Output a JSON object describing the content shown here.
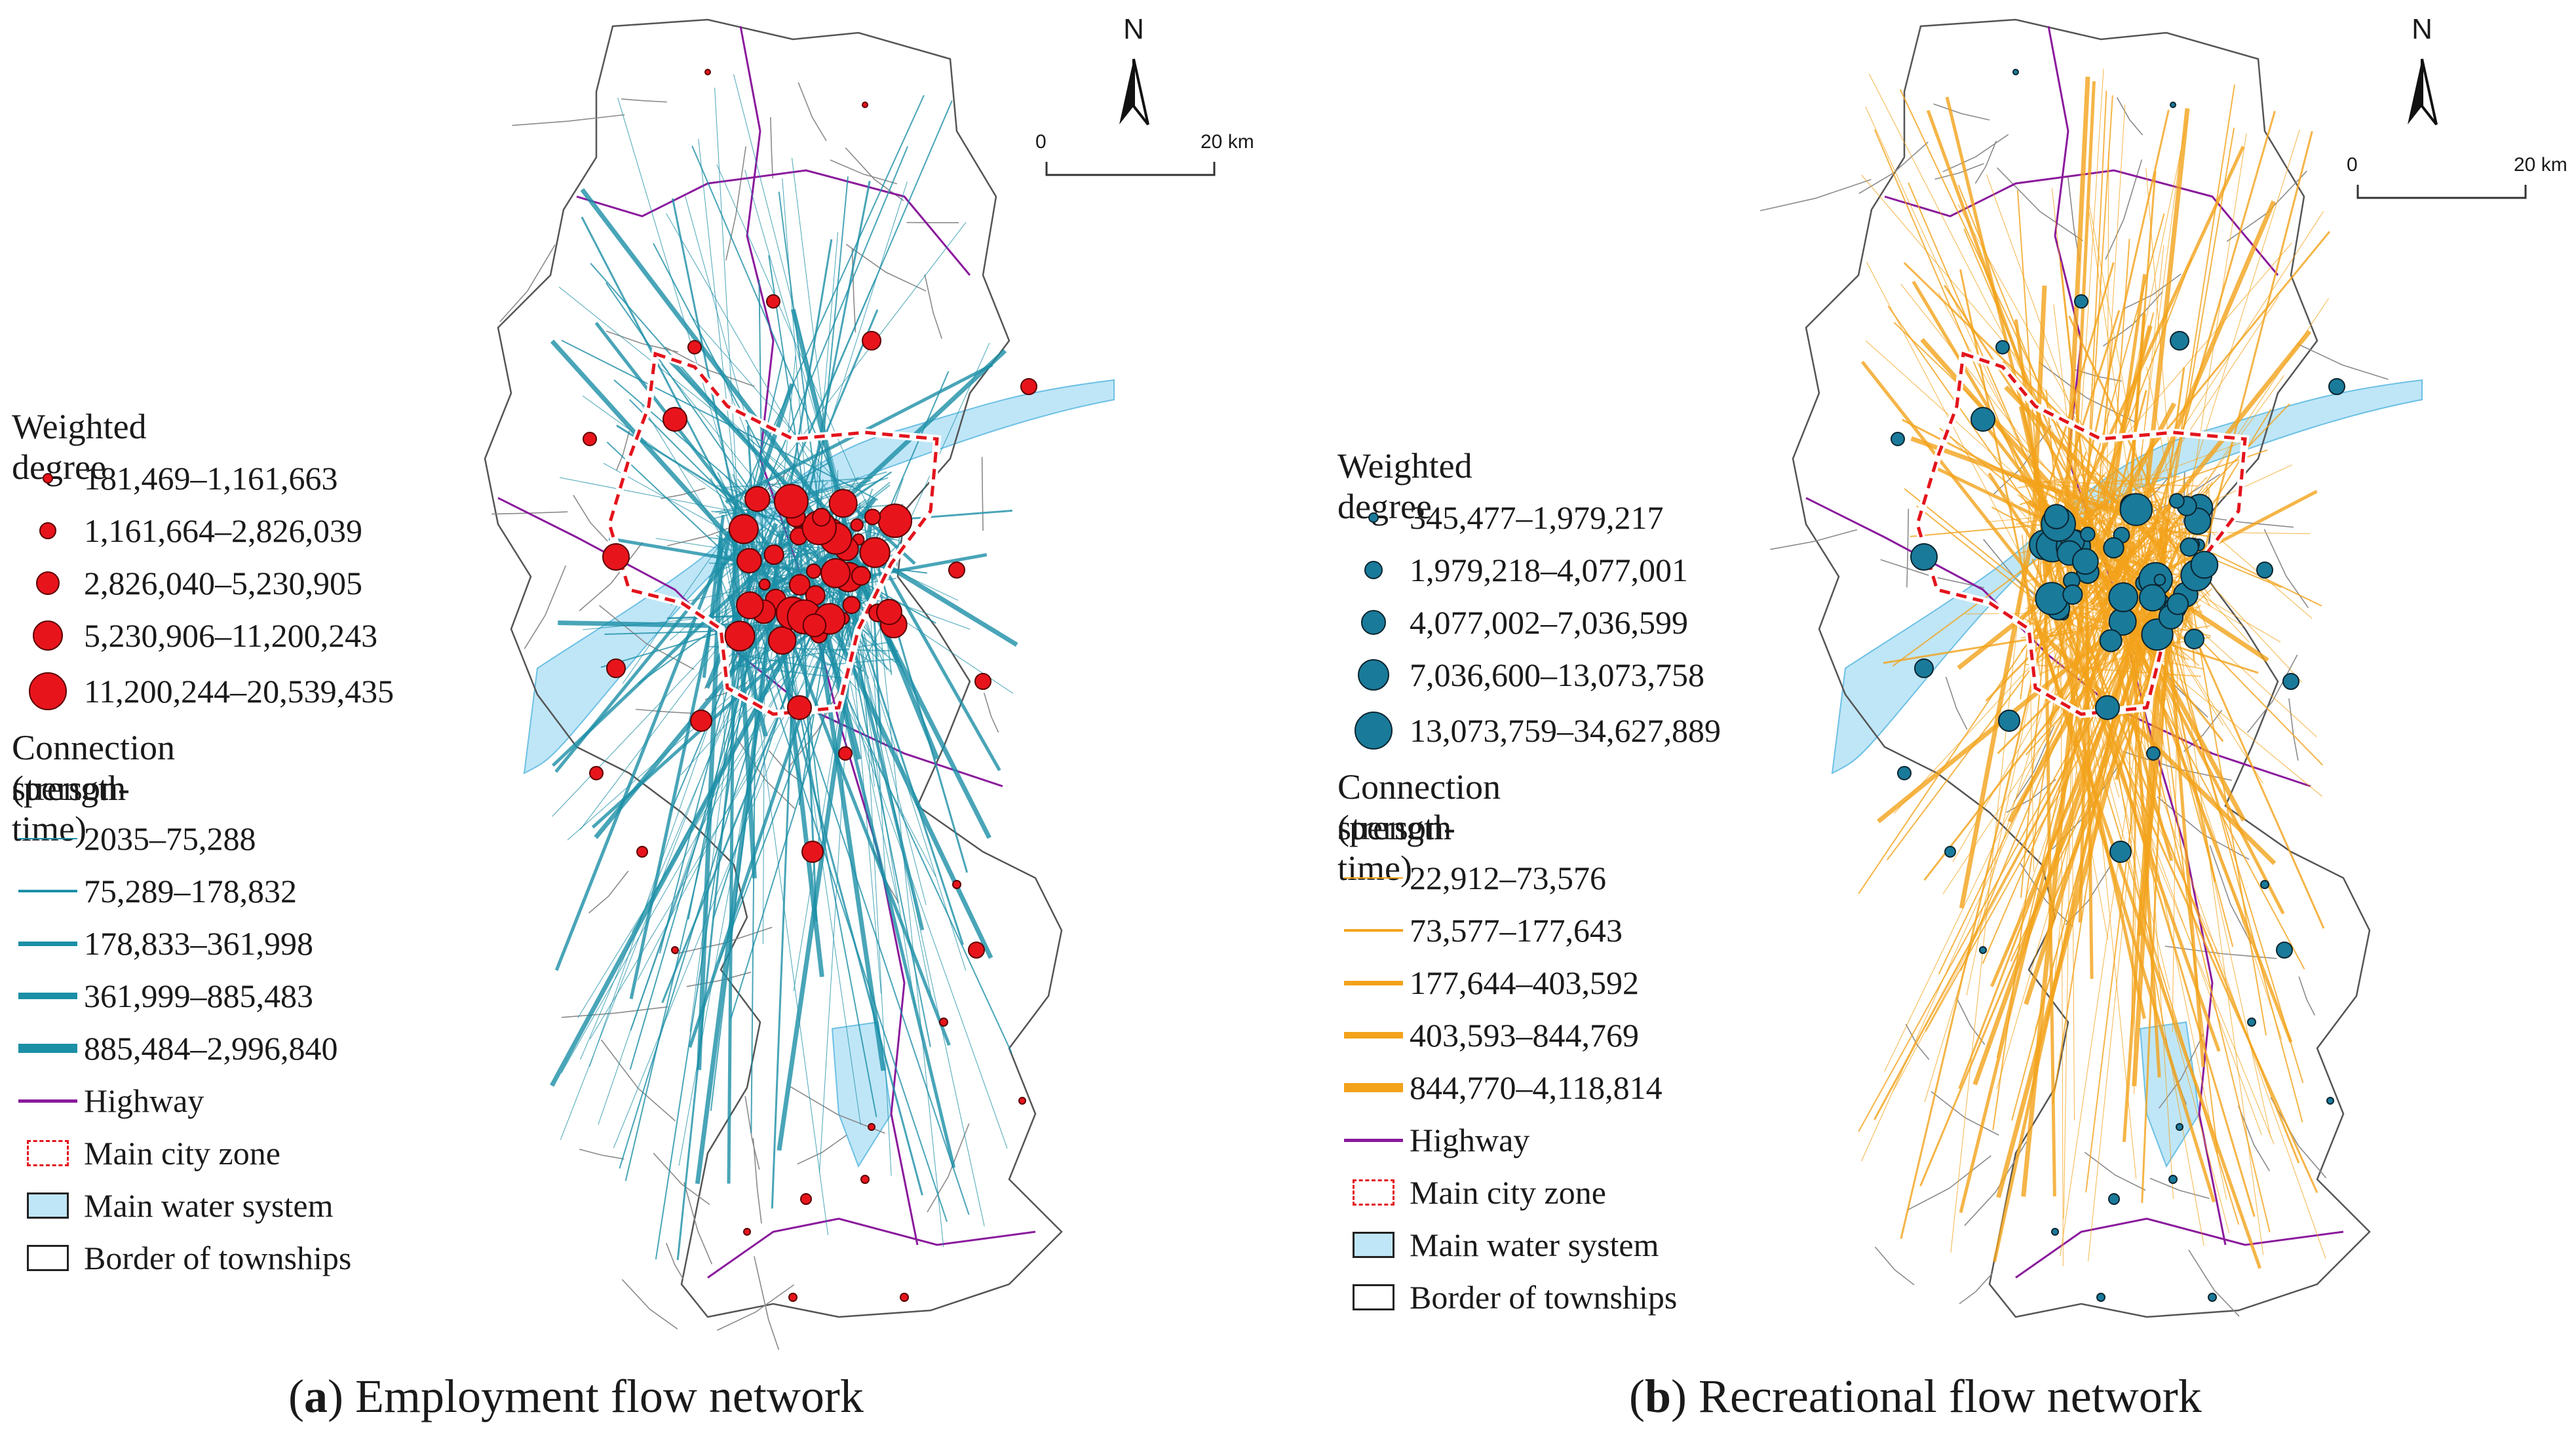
{
  "colors": {
    "panel_a_node": "#e8141c",
    "panel_a_line": "#1b8fa6",
    "panel_b_node": "#1a7a9a",
    "panel_b_line": "#f3a21a",
    "highway": "#8a1a9c",
    "main_city_zone": "#e3141c",
    "water": "#bfe6f7",
    "township_border": "#555555"
  },
  "panel_a": {
    "caption_letter": "a",
    "caption_text": "Employment flow network",
    "north_label": "N",
    "scale": {
      "start": "0",
      "end": "20 km"
    },
    "legend": {
      "weighted_degree_title": "Weighted degree",
      "weighted_degree_classes": [
        "181,469–1,161,663",
        "1,161,664–2,826,039",
        "2,826,040–5,230,905",
        "5,230,906–11,200,243",
        "11,200,244–20,539,435"
      ],
      "connection_title_1": "Connection strength",
      "connection_title_2": "(person-time)",
      "connection_classes": [
        "2035–75,288",
        "75,289–178,832",
        "178,833–361,998",
        "361,999–885,483",
        "885,484–2,996,840"
      ],
      "highway": "Highway",
      "main_city_zone": "Main city zone",
      "main_water_system": "Main water system",
      "border_of_townships": "Border of  townships"
    }
  },
  "panel_b": {
    "caption_letter": "b",
    "caption_text": "Recreational flow network",
    "north_label": "N",
    "scale": {
      "start": "0",
      "end": "20 km"
    },
    "legend": {
      "weighted_degree_title": "Weighted degree",
      "weighted_degree_classes": [
        "345,477–1,979,217",
        "1,979,218–4,077,001",
        "4,077,002–7,036,599",
        "7,036,600–13,073,758",
        "13,073,759–34,627,889"
      ],
      "connection_title_1": "Connection strength",
      "connection_title_2": "(person-time)",
      "connection_classes": [
        "22,912–73,576",
        "73,577–177,643",
        "177,644–403,592",
        "403,593–844,769",
        "844,770–4,118,814"
      ],
      "highway": "Highway",
      "main_city_zone": "Main city zone",
      "main_water_system": "Main water system",
      "border_of_townships": "Border of  townships"
    }
  }
}
